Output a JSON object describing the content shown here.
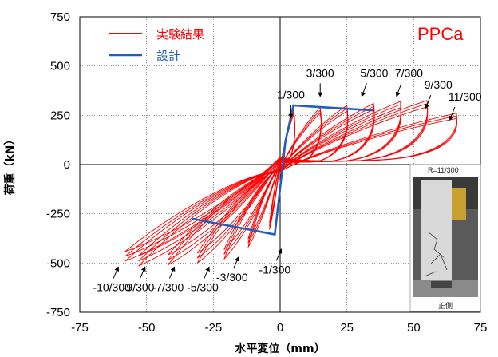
{
  "chart_data": {
    "type": "line",
    "title": "",
    "xlabel": "水平変位（mm）",
    "ylabel": "荷重（kN）",
    "xlim": [
      -75,
      75
    ],
    "ylim": [
      -750,
      750
    ],
    "xticks": [
      "-75",
      "-50",
      "-25",
      "0",
      "25",
      "50",
      "75"
    ],
    "yticks": [
      "750",
      "500",
      "250",
      "0",
      "-250",
      "-500",
      "-750"
    ],
    "grid": true,
    "legend_position": "top-left",
    "brand_label": "PPCa",
    "colors": {
      "experiment": "#ff0000",
      "design": "#1f5fbf",
      "brand": "#ff0000"
    },
    "series": [
      {
        "name": "実験結果",
        "color": "#ff0000",
        "envelope_positive": [
          [
            5,
            280
          ],
          [
            15,
            290
          ],
          [
            25,
            300
          ],
          [
            35,
            310
          ],
          [
            45,
            320
          ],
          [
            55,
            325
          ],
          [
            66,
            260
          ]
        ],
        "envelope_negative": [
          [
            -4,
            -330
          ],
          [
            -12,
            -420
          ],
          [
            -21,
            -480
          ],
          [
            -31,
            -500
          ],
          [
            -42,
            -510
          ],
          [
            -53,
            -515
          ],
          [
            -58,
            -490
          ]
        ]
      },
      {
        "name": "設計",
        "color": "#1f5fbf",
        "x": [
          -33,
          -2,
          0,
          2,
          5,
          35
        ],
        "y": [
          -275,
          -355,
          -120,
          120,
          300,
          275
        ]
      }
    ],
    "annotations": {
      "positive": [
        {
          "text": "1/300",
          "x": 4,
          "y": 310
        },
        {
          "text": "3/300",
          "x": 15,
          "y": 420
        },
        {
          "text": "5/300",
          "x": 30,
          "y": 420
        },
        {
          "text": "7/300",
          "x": 43,
          "y": 420
        },
        {
          "text": "9/300",
          "x": 54,
          "y": 360
        },
        {
          "text": "11/300",
          "x": 63,
          "y": 300
        }
      ],
      "negative": [
        {
          "text": "-1/300",
          "x": -2,
          "y": -520
        },
        {
          "text": "-3/300",
          "x": -18,
          "y": -560
        },
        {
          "text": "-5/300",
          "x": -29,
          "y": -610
        },
        {
          "text": "-7/300",
          "x": -42,
          "y": -610
        },
        {
          "text": "-9/300",
          "x": -53,
          "y": -610
        },
        {
          "text": "-10/300",
          "x": -63,
          "y": -610
        }
      ]
    },
    "inset": {
      "top_label": "R=11/300",
      "bottom_label": "正側"
    }
  }
}
